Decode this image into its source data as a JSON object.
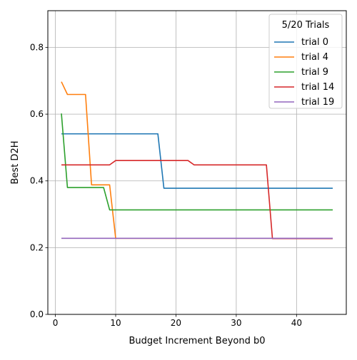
{
  "chart_data": {
    "type": "line",
    "title": "",
    "xlabel": "Budget Increment Beyond b0",
    "ylabel": "Best D2H",
    "xlim": [
      -1.25,
      48.25
    ],
    "ylim": [
      0,
      0.91
    ],
    "x_ticks": [
      0,
      10,
      20,
      30,
      40
    ],
    "y_ticks": [
      0.0,
      0.2,
      0.4,
      0.6,
      0.8
    ],
    "y_tick_labels": [
      "0.0",
      "0.2",
      "0.4",
      "0.6",
      "0.8"
    ],
    "grid": true,
    "legend": {
      "title": "5/20 Trials",
      "placement": "top-right"
    },
    "series": [
      {
        "name": "trial 0",
        "color": "#1f77b4",
        "points": [
          [
            1,
            0.541
          ],
          [
            17,
            0.541
          ],
          [
            18,
            0.378
          ],
          [
            46,
            0.378
          ]
        ]
      },
      {
        "name": "trial 4",
        "color": "#ff7f0e",
        "points": [
          [
            1,
            0.697
          ],
          [
            2,
            0.659
          ],
          [
            5,
            0.659
          ],
          [
            6,
            0.388
          ],
          [
            9,
            0.388
          ],
          [
            10,
            0.228
          ],
          [
            46,
            0.228
          ]
        ]
      },
      {
        "name": "trial 9",
        "color": "#2ca02c",
        "points": [
          [
            1,
            0.602
          ],
          [
            2,
            0.38
          ],
          [
            8,
            0.38
          ],
          [
            9,
            0.313
          ],
          [
            46,
            0.313
          ]
        ]
      },
      {
        "name": "trial 14",
        "color": "#d62728",
        "points": [
          [
            1,
            0.448
          ],
          [
            9,
            0.448
          ],
          [
            10,
            0.461
          ],
          [
            22,
            0.461
          ],
          [
            23,
            0.448
          ],
          [
            35,
            0.448
          ],
          [
            36,
            0.227
          ],
          [
            46,
            0.227
          ]
        ]
      },
      {
        "name": "trial 19",
        "color": "#9467bd",
        "points": [
          [
            1,
            0.228
          ],
          [
            46,
            0.228
          ]
        ]
      }
    ]
  }
}
